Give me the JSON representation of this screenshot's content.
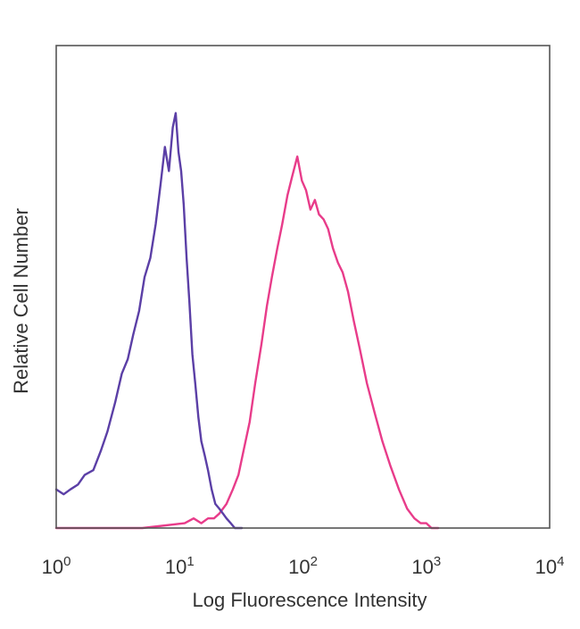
{
  "chart_data": {
    "type": "line",
    "title": "",
    "xlabel": "Log Fluorescence Intensity",
    "ylabel": "Relative Cell Number",
    "x_scale": "log",
    "xlim": [
      1,
      10000
    ],
    "ylim": [
      0,
      1
    ],
    "x_ticks": [
      {
        "base": "10",
        "exp": "0",
        "value": 1
      },
      {
        "base": "10",
        "exp": "1",
        "value": 10
      },
      {
        "base": "10",
        "exp": "2",
        "value": 100
      },
      {
        "base": "10",
        "exp": "3",
        "value": 1000
      },
      {
        "base": "10",
        "exp": "4",
        "value": 10000
      }
    ],
    "grid": false,
    "legend": "none",
    "series": [
      {
        "color": "#5b3fa6",
        "x": [
          1.0,
          1.15,
          1.3,
          1.5,
          1.7,
          2.0,
          2.3,
          2.6,
          3.0,
          3.4,
          3.8,
          4.2,
          4.7,
          5.2,
          5.8,
          6.4,
          7.0,
          7.6,
          8.2,
          8.8,
          9.3,
          9.8,
          10.3,
          10.8,
          11.4,
          12.0,
          12.7,
          13.4,
          14.2,
          15.0,
          16.0,
          17.0,
          18.2,
          19.5,
          21.0,
          22.5,
          24.0,
          26.0,
          28.0,
          30.0,
          32.0
        ],
        "y": [
          0.08,
          0.07,
          0.08,
          0.09,
          0.11,
          0.12,
          0.16,
          0.2,
          0.26,
          0.32,
          0.35,
          0.4,
          0.45,
          0.52,
          0.56,
          0.63,
          0.71,
          0.79,
          0.74,
          0.83,
          0.86,
          0.78,
          0.74,
          0.67,
          0.56,
          0.47,
          0.36,
          0.3,
          0.23,
          0.18,
          0.15,
          0.12,
          0.08,
          0.05,
          0.04,
          0.03,
          0.02,
          0.01,
          0.0,
          0.0,
          0.0
        ]
      },
      {
        "color": "#e83c8a",
        "x": [
          1.0,
          5.0,
          11.0,
          13.0,
          15.0,
          17.0,
          19.0,
          21.0,
          24.0,
          27.0,
          30.0,
          33.0,
          37.0,
          41.0,
          46.0,
          51.0,
          56.0,
          62.0,
          68.0,
          75.0,
          82.0,
          90.0,
          98.0,
          106.0,
          115.0,
          125.0,
          135.0,
          147.0,
          160.0,
          175.0,
          192.0,
          210.0,
          232.0,
          258.0,
          290.0,
          330.0,
          380.0,
          440.0,
          510.0,
          600.0,
          700.0,
          800.0,
          900.0,
          1000.0,
          1100.0,
          1250.0
        ],
        "y": [
          0.0,
          0.0,
          0.01,
          0.02,
          0.01,
          0.02,
          0.02,
          0.03,
          0.05,
          0.08,
          0.11,
          0.16,
          0.22,
          0.3,
          0.38,
          0.46,
          0.52,
          0.58,
          0.63,
          0.69,
          0.73,
          0.77,
          0.72,
          0.7,
          0.66,
          0.68,
          0.65,
          0.64,
          0.62,
          0.58,
          0.55,
          0.53,
          0.49,
          0.43,
          0.37,
          0.3,
          0.24,
          0.18,
          0.13,
          0.08,
          0.04,
          0.02,
          0.01,
          0.01,
          0.0,
          0.0
        ]
      }
    ]
  }
}
